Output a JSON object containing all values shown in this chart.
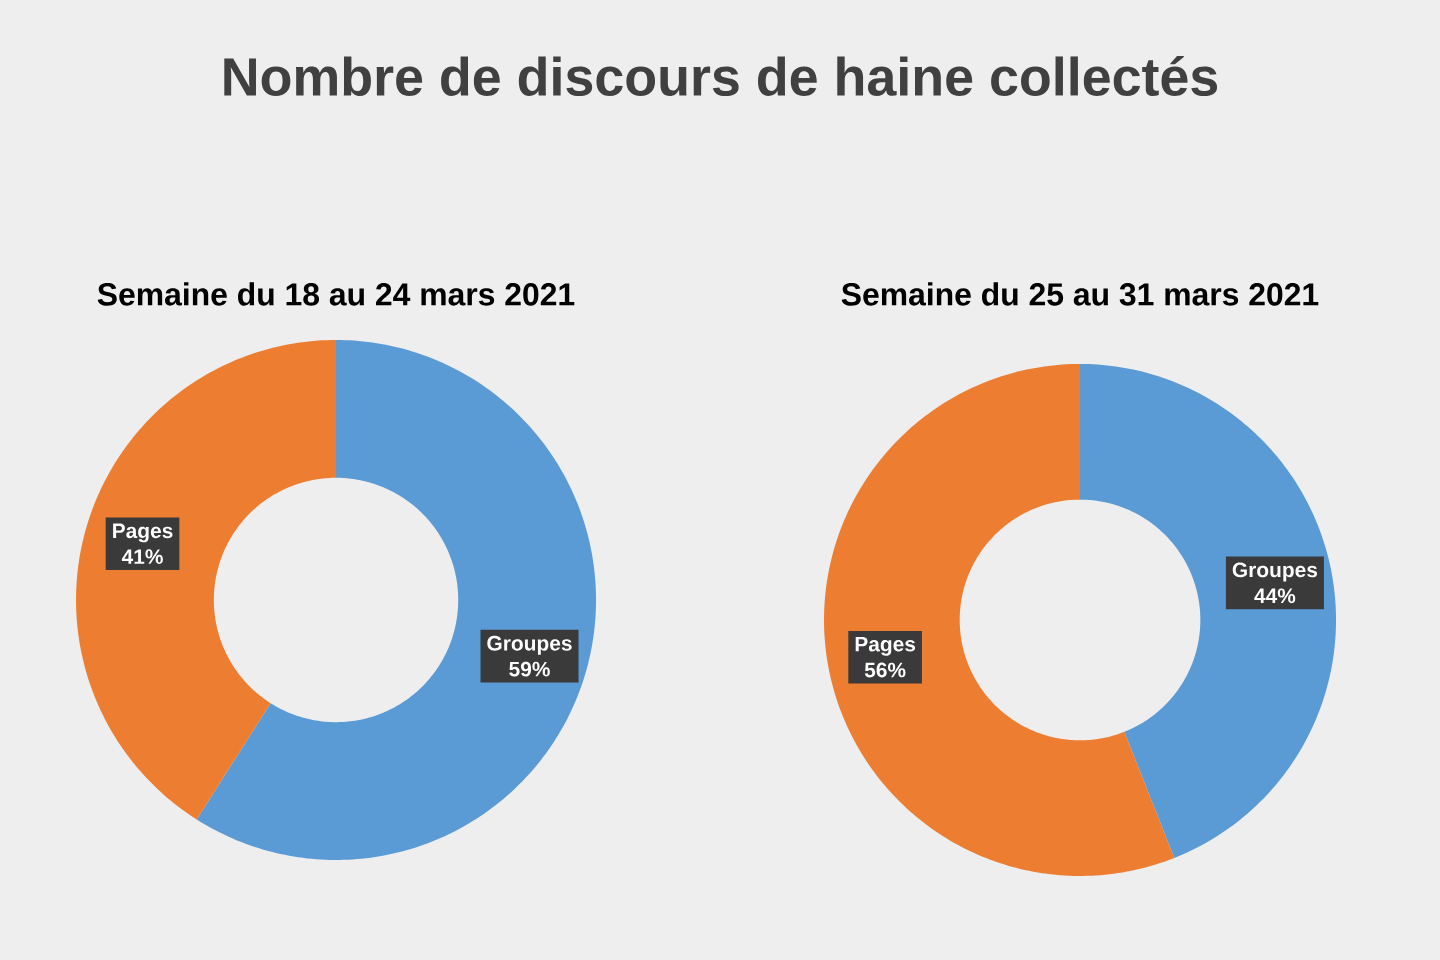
{
  "chart_data": [
    {
      "type": "donut",
      "title": "Nombre de discours de haine collectés",
      "subtitle": "Semaine du 18 au 24 mars 2021",
      "categories": [
        "Groupes",
        "Pages"
      ],
      "values": [
        59,
        41
      ],
      "colors": [
        "#5b9bd5",
        "#ed7d31"
      ],
      "value_labels": [
        "59%",
        "41%"
      ]
    },
    {
      "type": "donut",
      "subtitle": "Semaine du 25 au 31 mars 2021",
      "categories": [
        "Groupes",
        "Pages"
      ],
      "values": [
        44,
        56
      ],
      "colors": [
        "#5b9bd5",
        "#ed7d31"
      ],
      "value_labels": [
        "44%",
        "56%"
      ]
    }
  ]
}
